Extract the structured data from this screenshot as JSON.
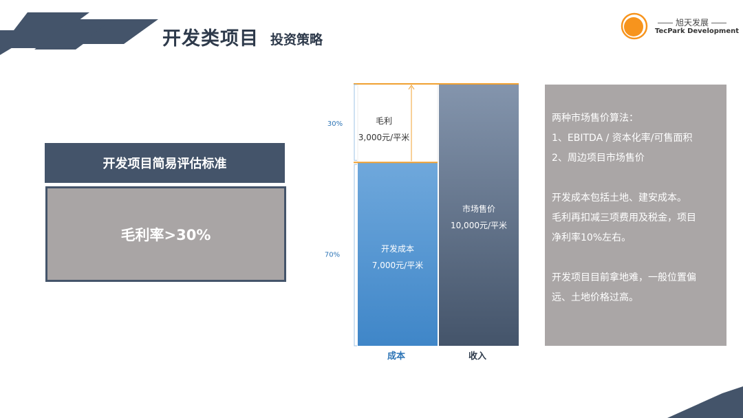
{
  "header": {
    "title": "开发类项目",
    "subtitle": "投资策略"
  },
  "logo": {
    "name_cn": "旭天发展",
    "name_en": "TecPark Development",
    "color": "#f7941d"
  },
  "standard": {
    "heading": "开发项目简易评估标准",
    "criterion": "毛利率>30%"
  },
  "chart_data": {
    "type": "bar",
    "categories": [
      "成本",
      "收入"
    ],
    "series": [
      {
        "name": "开发成本",
        "values": [
          7000,
          0
        ],
        "label": "开发成本",
        "value_label": "7,000元/平米"
      },
      {
        "name": "毛利",
        "values": [
          3000,
          0
        ],
        "label": "毛利",
        "value_label": "3,000元/平米"
      },
      {
        "name": "市场售价",
        "values": [
          0,
          10000
        ],
        "label": "市场售价",
        "value_label": "10,000元/平米"
      }
    ],
    "percent_labels": {
      "margin": "30%",
      "cost": "70%"
    },
    "ylim": [
      0,
      10000
    ],
    "colors": {
      "cost": "#5b9bd5",
      "revenue": "#44546a",
      "line": "#f0a030",
      "bracket": "#9dc3e6"
    }
  },
  "info": {
    "lines": [
      "两种市场售价算法：",
      "1、EBITDA / 资本化率/可售面积",
      "2、周边项目市场售价",
      "",
      "开发成本包括土地、建安成本。",
      "毛利再扣减三项费用及税金，项目",
      "净利率10%左右。",
      "",
      "开发项目目前拿地难，一般位置偏",
      "远、土地价格过高。"
    ]
  }
}
